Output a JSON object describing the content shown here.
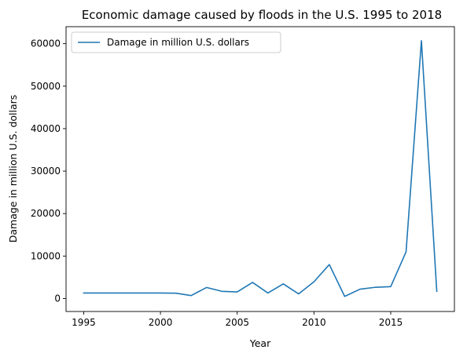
{
  "chart_data": {
    "type": "line",
    "title": "Economic damage caused by floods in the U.S. 1995 to 2018",
    "xlabel": "Year",
    "ylabel": "Damage in million U.S. dollars",
    "xlim": [
      1993.85,
      2019.15
    ],
    "ylim": [
      -3050,
      64000
    ],
    "xticks": [
      1995,
      2000,
      2005,
      2010,
      2015
    ],
    "yticks": [
      0,
      10000,
      20000,
      30000,
      40000,
      50000,
      60000
    ],
    "grid": false,
    "legend": {
      "placement": "top-left"
    },
    "series": [
      {
        "name": "Damage in million U.S. dollars",
        "color": "#1f77b4",
        "x": [
          1995,
          1996,
          1997,
          1998,
          1999,
          2000,
          2001,
          2002,
          2003,
          2004,
          2005,
          2006,
          2007,
          2008,
          2009,
          2010,
          2011,
          2012,
          2013,
          2014,
          2015,
          2016,
          2017,
          2018
        ],
        "values": [
          1300,
          1300,
          1300,
          1300,
          1300,
          1300,
          1250,
          700,
          2600,
          1700,
          1550,
          3800,
          1300,
          3450,
          1100,
          3950,
          8000,
          500,
          2200,
          2650,
          2800,
          11000,
          60700,
          1700
        ]
      }
    ]
  }
}
